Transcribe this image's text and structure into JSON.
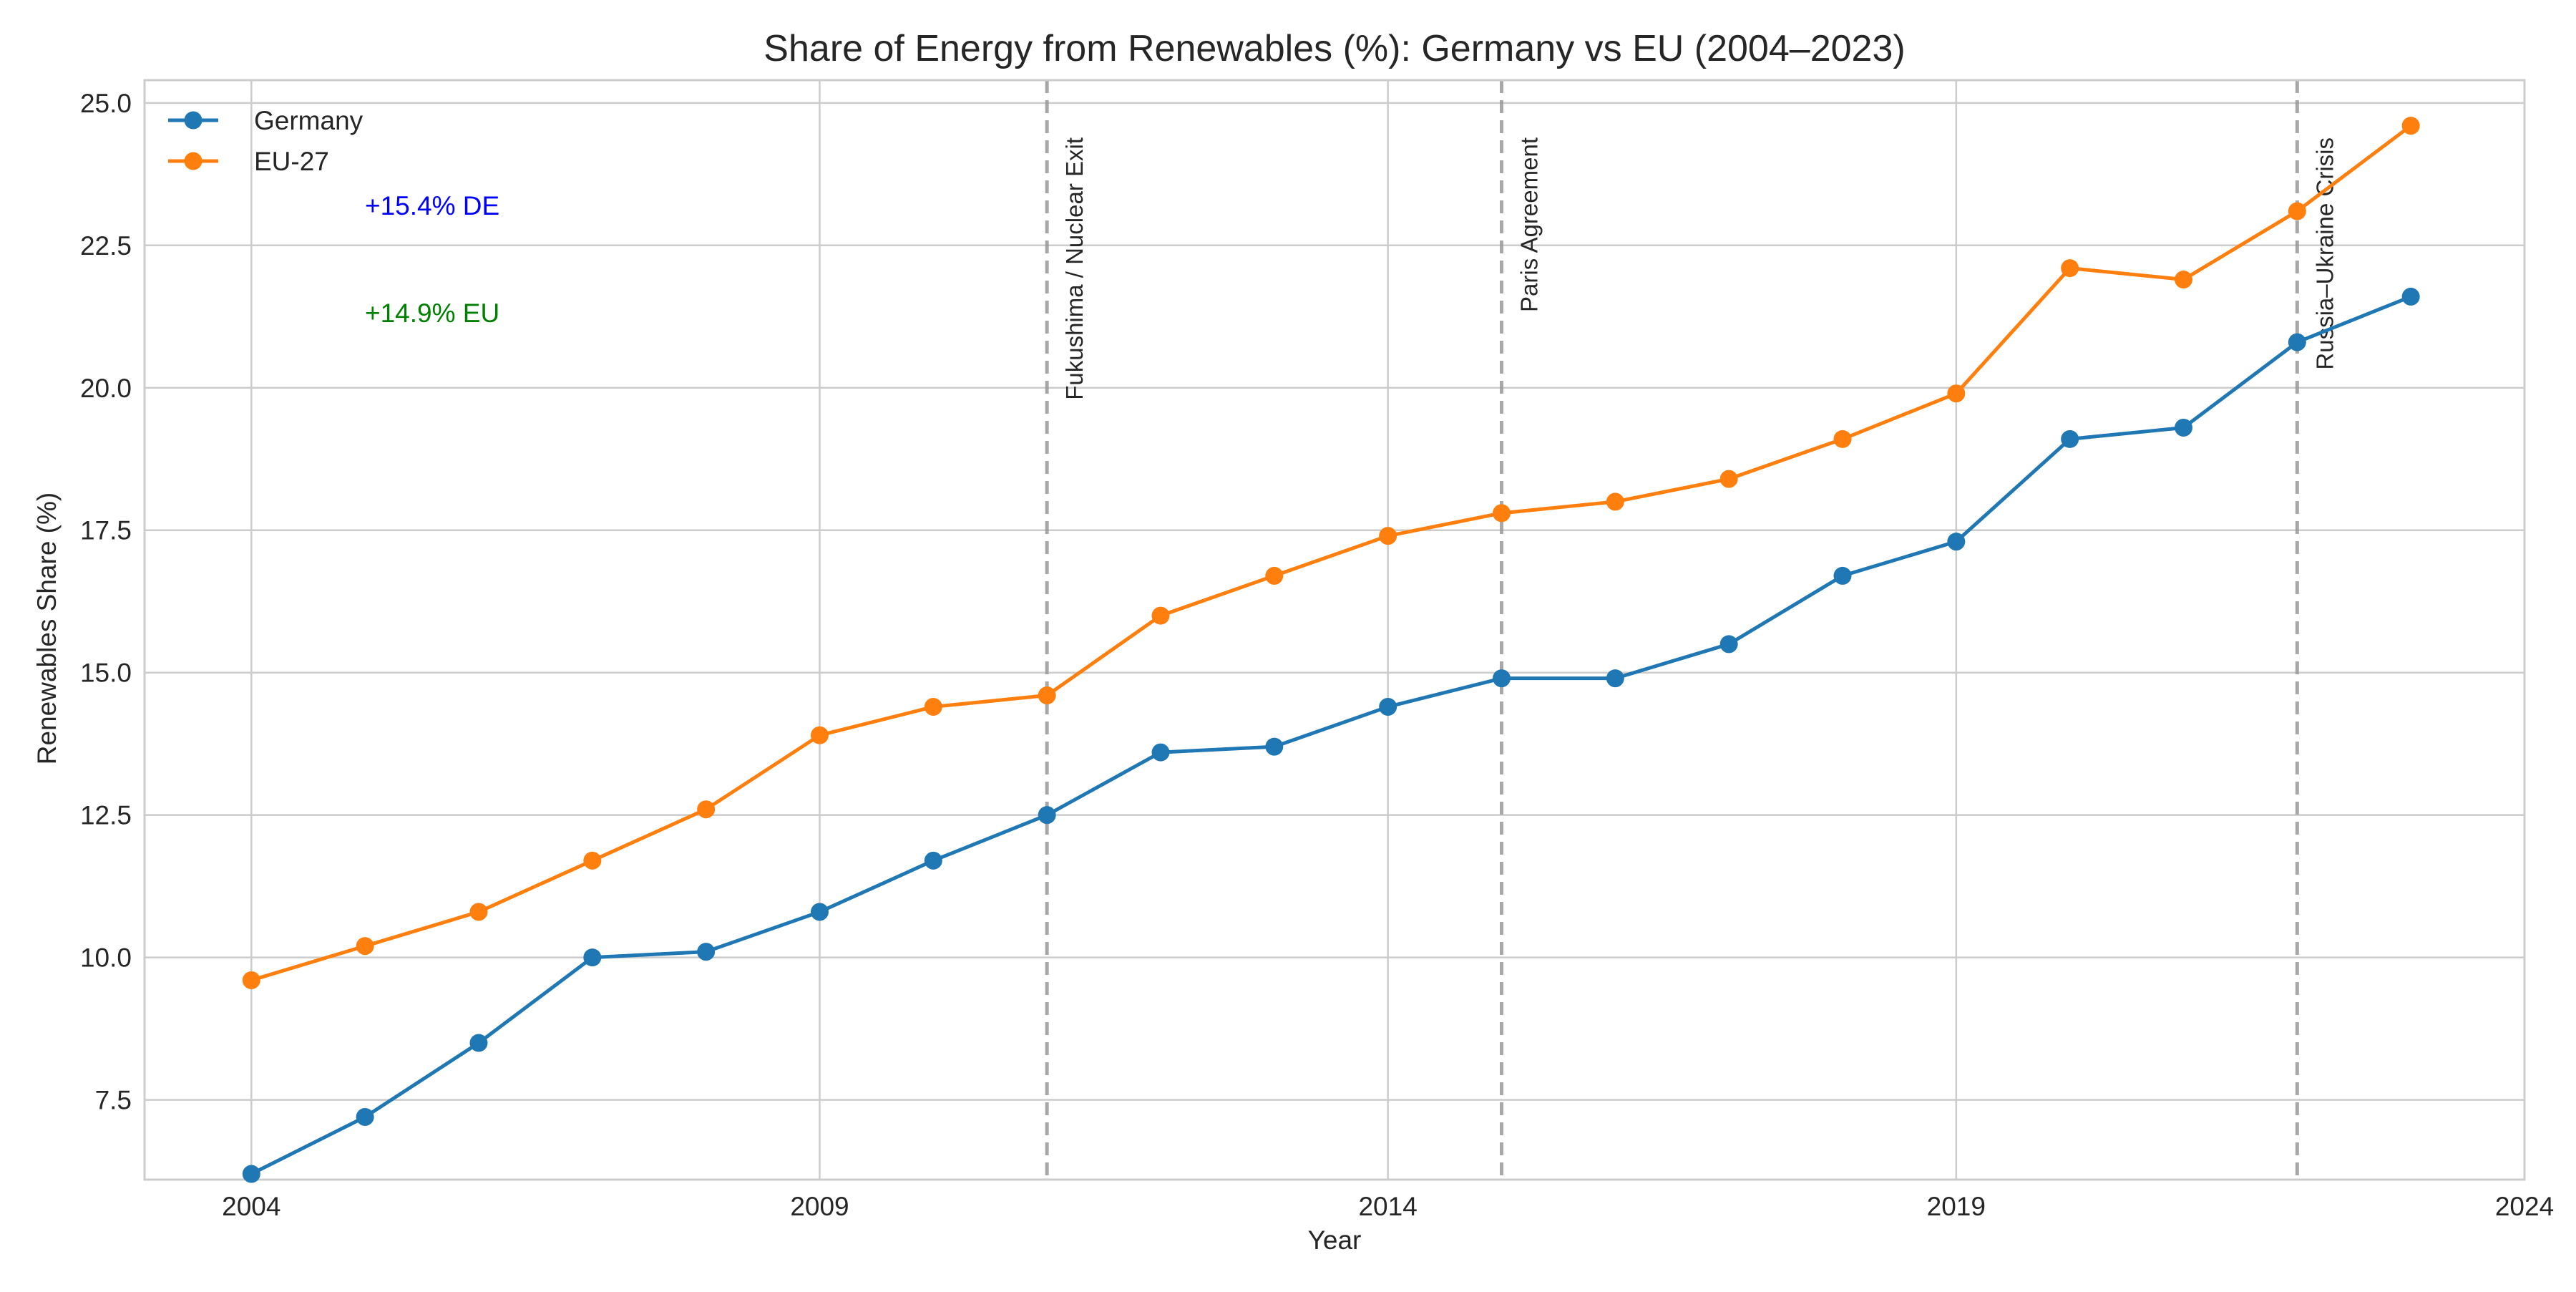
{
  "chart_data": {
    "type": "line",
    "title": "Share of Energy from Renewables (%): Germany vs EU (2004–2023)",
    "xlabel": "Year",
    "ylabel": "Renewables Share (%)",
    "xlim": [
      2003.06,
      2024
    ],
    "ylim": [
      6.1,
      25.4
    ],
    "xticks": [
      2004,
      2009,
      2014,
      2019,
      2024
    ],
    "yticks": [
      7.5,
      10.0,
      12.5,
      15.0,
      17.5,
      20.0,
      22.5,
      25.0
    ],
    "ytick_labels": [
      "7.5",
      "10.0",
      "12.5",
      "15.0",
      "17.5",
      "20.0",
      "22.5",
      "25.0"
    ],
    "grid": true,
    "legend_position": "upper left",
    "x": [
      2004,
      2005,
      2006,
      2007,
      2008,
      2009,
      2010,
      2011,
      2012,
      2013,
      2014,
      2015,
      2016,
      2017,
      2018,
      2019,
      2020,
      2021,
      2022,
      2023
    ],
    "series": [
      {
        "name": "Germany",
        "color": "#1f77b4",
        "values": [
          6.2,
          7.2,
          8.5,
          10.0,
          10.1,
          10.8,
          11.7,
          12.5,
          13.6,
          13.7,
          14.4,
          14.9,
          14.9,
          15.5,
          16.7,
          17.3,
          19.1,
          19.3,
          20.8,
          21.6
        ]
      },
      {
        "name": "EU-27",
        "color": "#ff7f0e",
        "values": [
          9.6,
          10.2,
          10.8,
          11.7,
          12.6,
          13.9,
          14.4,
          14.6,
          16.0,
          16.7,
          17.4,
          17.8,
          18.0,
          18.4,
          19.1,
          19.9,
          22.1,
          21.9,
          23.1,
          24.6
        ]
      }
    ],
    "events": [
      {
        "x": 2011,
        "label": "Fukushima / Nuclear Exit"
      },
      {
        "x": 2015,
        "label": "Paris Agreement"
      },
      {
        "x": 2022,
        "label": "Russia–Ukraine Crisis"
      }
    ],
    "annotations": [
      {
        "text": "+15.4% DE",
        "color": "#0000ff"
      },
      {
        "text": "+14.9% EU",
        "color": "#008000"
      }
    ]
  }
}
